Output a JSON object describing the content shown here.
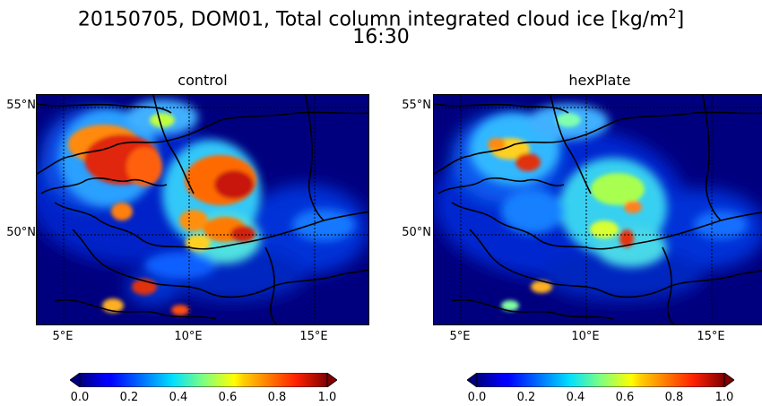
{
  "figure": {
    "title_line1": "20150705, DOM01,  Total column integrated cloud ice [kg/m",
    "title_sup": "2",
    "title_close": "]",
    "title_line2": "16:30"
  },
  "panels": [
    {
      "title": "control"
    },
    {
      "title": "hexPlate"
    }
  ],
  "axes": {
    "lat_labels": [
      "55°N",
      "50°N"
    ],
    "lon_labels": [
      "5°E",
      "10°E",
      "15°E"
    ]
  },
  "colorbar": {
    "ticks": [
      "0.0",
      "0.2",
      "0.4",
      "0.6",
      "0.8",
      "1.0"
    ],
    "range": [
      0.0,
      1.0
    ],
    "colormap": "jet",
    "extend": "both"
  },
  "colors": {
    "background_field": "#00007f",
    "coastline": "#000000",
    "grid": "#000000"
  }
}
